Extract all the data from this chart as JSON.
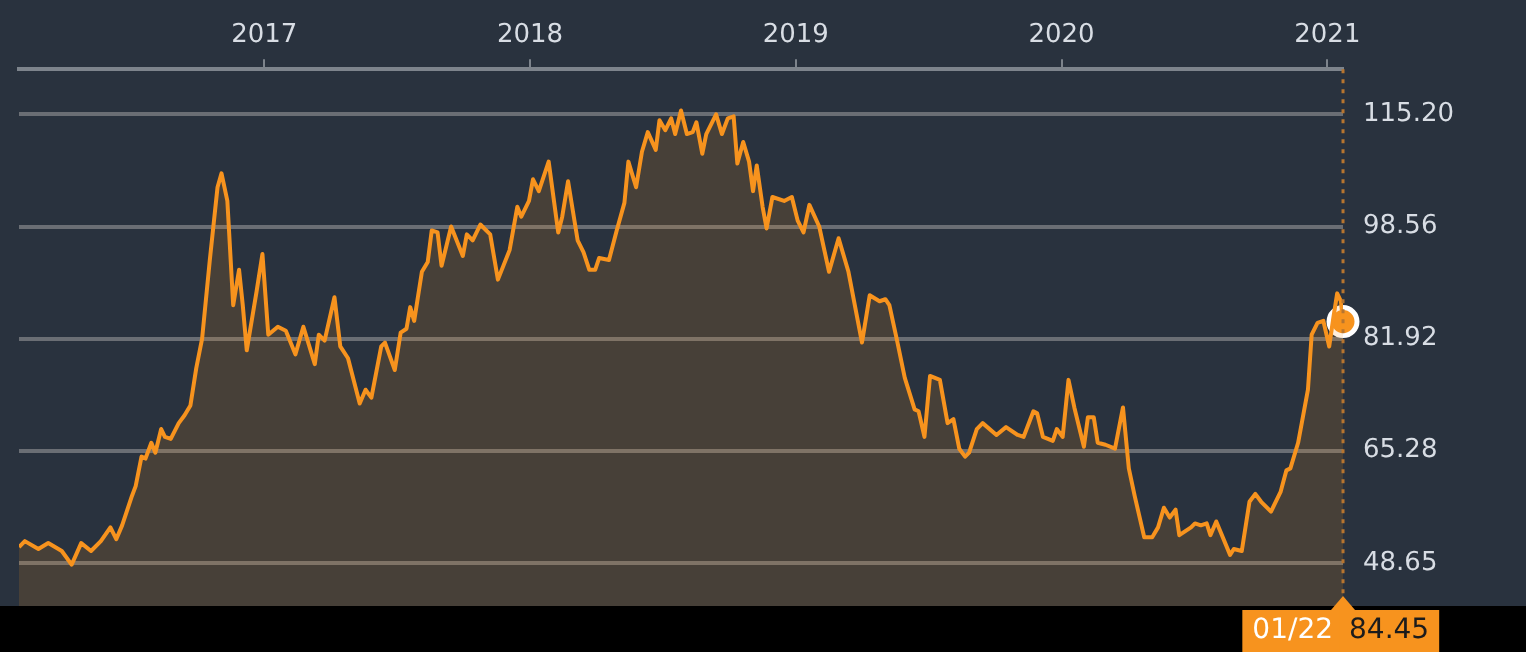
{
  "chart_data": {
    "type": "area",
    "x": [
      2016.077,
      2016.099,
      2016.15,
      2016.187,
      2016.238,
      2016.275,
      2016.311,
      2016.348,
      2016.385,
      2016.421,
      2016.443,
      2016.465,
      2016.502,
      2016.516,
      2016.538,
      2016.553,
      2016.575,
      2016.59,
      2016.612,
      2016.626,
      2016.648,
      2016.678,
      2016.7,
      2016.722,
      2016.744,
      2016.766,
      2016.795,
      2016.824,
      2016.839,
      2016.861,
      2016.883,
      2016.905,
      2016.919,
      2016.934,
      2016.971,
      2016.993,
      2017.015,
      2017.051,
      2017.081,
      2017.117,
      2017.147,
      2017.19,
      2017.205,
      2017.227,
      2017.264,
      2017.286,
      2017.315,
      2017.359,
      2017.381,
      2017.403,
      2017.44,
      2017.454,
      2017.491,
      2017.513,
      2017.535,
      2017.549,
      2017.564,
      2017.593,
      2017.615,
      2017.63,
      2017.652,
      2017.667,
      2017.703,
      2017.747,
      2017.762,
      2017.784,
      2017.813,
      2017.85,
      2017.879,
      2017.923,
      2017.952,
      2017.967,
      2017.996,
      2018.011,
      2018.033,
      2018.07,
      2018.106,
      2018.121,
      2018.143,
      2018.179,
      2018.201,
      2018.223,
      2018.245,
      2018.26,
      2018.297,
      2018.326,
      2018.355,
      2018.37,
      2018.399,
      2018.421,
      2018.443,
      2018.473,
      2018.487,
      2018.509,
      2018.531,
      2018.546,
      2018.568,
      2018.59,
      2018.612,
      2018.626,
      2018.648,
      2018.663,
      2018.7,
      2018.722,
      2018.744,
      2018.766,
      2018.78,
      2018.802,
      2018.824,
      2018.839,
      2018.853,
      2018.875,
      2018.89,
      2018.912,
      2018.956,
      2018.985,
      2019.007,
      2019.029,
      2019.051,
      2019.088,
      2019.125,
      2019.161,
      2019.198,
      2019.249,
      2019.278,
      2019.315,
      2019.337,
      2019.352,
      2019.381,
      2019.41,
      2019.447,
      2019.462,
      2019.484,
      2019.505,
      2019.542,
      2019.571,
      2019.593,
      2019.615,
      2019.637,
      2019.652,
      2019.681,
      2019.703,
      2019.755,
      2019.791,
      2019.835,
      2019.857,
      2019.894,
      2019.908,
      2019.93,
      2019.967,
      2019.982,
      2020.004,
      2020.026,
      2020.048,
      2020.084,
      2020.099,
      2020.121,
      2020.136,
      2020.165,
      2020.201,
      2020.231,
      2020.253,
      2020.275,
      2020.311,
      2020.341,
      2020.363,
      2020.385,
      2020.407,
      2020.429,
      2020.443,
      2020.487,
      2020.502,
      2020.524,
      2020.546,
      2020.56,
      2020.582,
      2020.634,
      2020.648,
      2020.678,
      2020.707,
      2020.729,
      2020.751,
      2020.788,
      2020.824,
      2020.846,
      2020.861,
      2020.89,
      2020.927,
      2020.941,
      2020.963,
      2020.985,
      2021.007,
      2021.022,
      2021.037,
      2021.051,
      2021.059
    ],
    "series": [
      {
        "color": "#f7931e",
        "values": [
          50.99,
          51.86,
          50.69,
          51.57,
          50.4,
          48.36,
          51.57,
          50.4,
          51.86,
          53.9,
          52.15,
          54.2,
          58.57,
          60.03,
          64.41,
          64.12,
          66.46,
          64.99,
          68.5,
          67.33,
          67.04,
          69.38,
          70.54,
          72.0,
          77.55,
          81.93,
          93.6,
          104.4,
          106.45,
          102.36,
          86.89,
          92.14,
          86.89,
          80.18,
          88.93,
          94.48,
          82.51,
          83.68,
          83.1,
          79.59,
          83.68,
          78.13,
          82.51,
          81.63,
          88.06,
          80.76,
          79.01,
          72.29,
          74.34,
          73.17,
          80.76,
          81.34,
          77.26,
          82.8,
          83.39,
          86.6,
          84.55,
          91.85,
          93.31,
          97.98,
          97.69,
          92.73,
          98.57,
          94.19,
          97.4,
          96.52,
          98.86,
          97.4,
          90.68,
          95.06,
          101.49,
          100.03,
          102.36,
          105.57,
          103.82,
          108.2,
          97.69,
          100.03,
          105.28,
          96.52,
          94.77,
          92.14,
          92.14,
          93.9,
          93.6,
          97.98,
          102.07,
          108.2,
          104.4,
          109.66,
          112.58,
          109.95,
          114.33,
          112.87,
          114.62,
          112.29,
          115.79,
          112.29,
          112.58,
          114.04,
          109.37,
          112.29,
          115.21,
          112.29,
          114.62,
          114.91,
          107.91,
          111.12,
          108.2,
          103.82,
          107.62,
          101.49,
          98.28,
          102.95,
          102.36,
          102.95,
          99.44,
          97.69,
          101.78,
          98.57,
          91.85,
          96.82,
          91.85,
          81.34,
          88.35,
          87.47,
          87.77,
          86.89,
          81.63,
          76.09,
          71.42,
          71.13,
          67.33,
          76.38,
          75.8,
          69.38,
          69.96,
          65.58,
          64.41,
          64.99,
          68.5,
          69.38,
          67.62,
          68.79,
          67.62,
          67.33,
          71.13,
          70.83,
          67.33,
          66.75,
          68.5,
          67.33,
          75.8,
          71.71,
          65.87,
          70.25,
          70.25,
          66.46,
          66.17,
          65.58,
          71.71,
          62.66,
          58.57,
          52.44,
          52.44,
          53.9,
          56.82,
          55.36,
          56.53,
          52.74,
          53.9,
          54.49,
          54.2,
          54.49,
          52.74,
          54.78,
          49.82,
          50.69,
          50.4,
          57.7,
          58.87,
          57.7,
          56.24,
          59.16,
          62.37,
          62.66,
          66.46,
          74.34,
          82.51,
          84.26,
          84.55,
          80.76,
          84.85,
          88.64,
          87.47,
          84.45
        ]
      },
      {
        "type": "scatter",
        "marker": "circle",
        "color": "#f7931e",
        "x": [
          2021.059
        ],
        "values": [
          84.45
        ]
      }
    ],
    "xlim": [
      2016.077,
      2021.059
    ],
    "xticks": [
      2017,
      2018,
      2019,
      2020,
      2021
    ],
    "ylim": [
      42.23,
      121.92
    ],
    "yticks": [
      {
        "value": 48.65,
        "label": "48.65"
      },
      {
        "value": 65.28,
        "label": "65.28"
      },
      {
        "value": 81.92,
        "label": "81.92"
      },
      {
        "value": 98.56,
        "label": "98.56"
      },
      {
        "value": 115.2,
        "label": "115.20"
      }
    ],
    "grid": "y",
    "ref_lines": [
      {
        "axis": "x",
        "value": 2021.059,
        "color": "#b7752f",
        "line_style": "dotted"
      }
    ],
    "annotations": [
      "01/22",
      "84.45"
    ]
  }
}
